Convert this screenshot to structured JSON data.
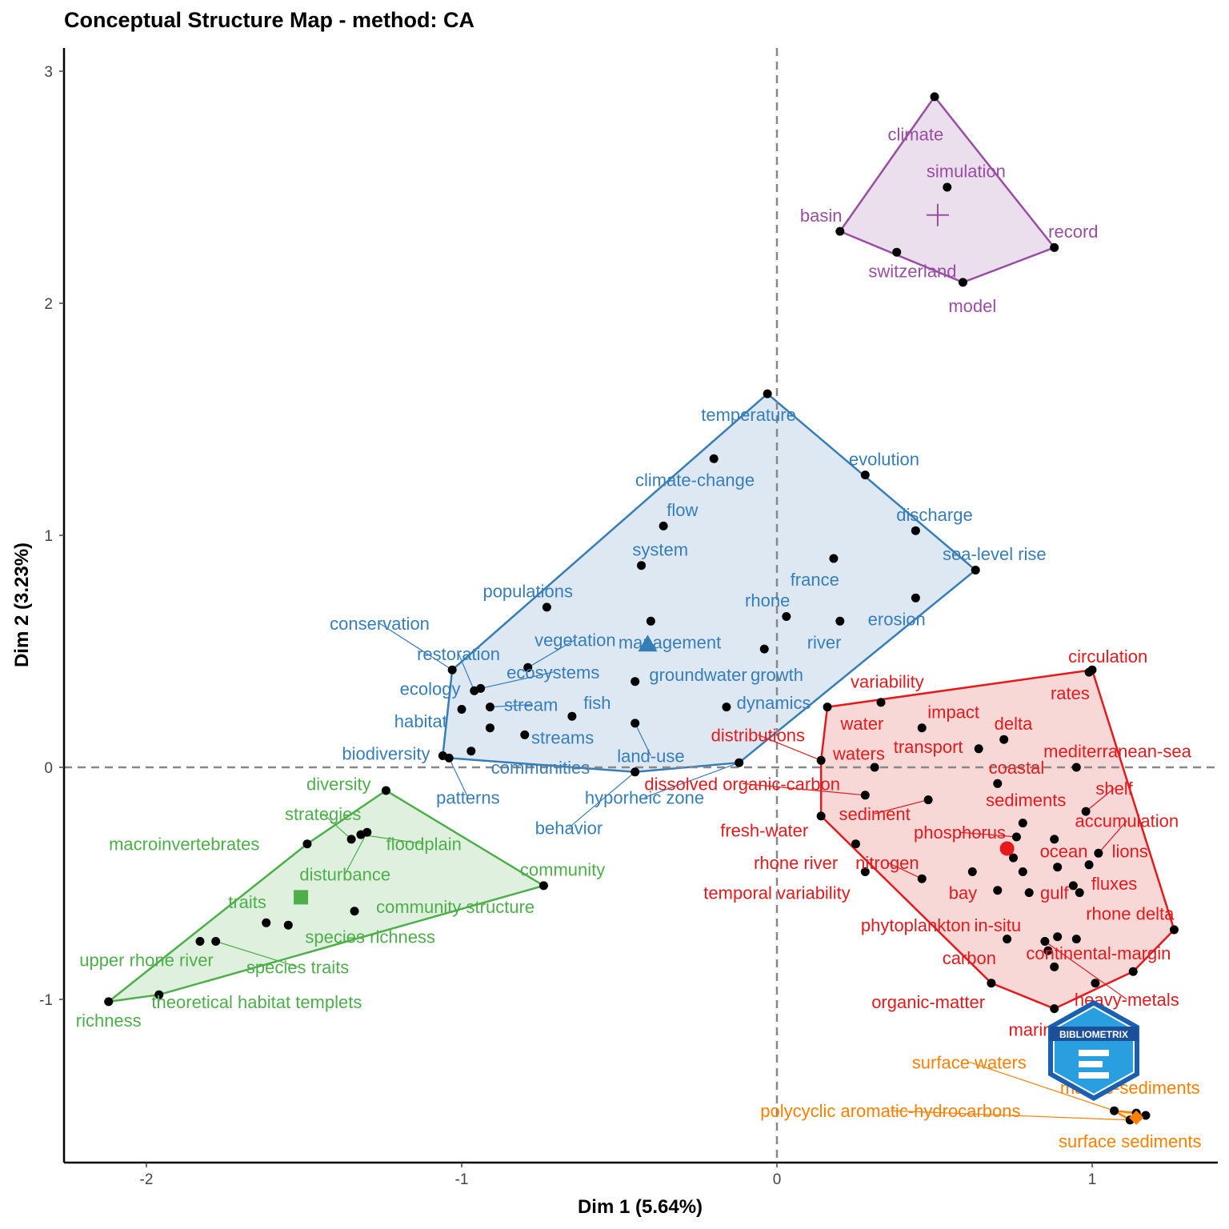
{
  "chart_data": {
    "type": "scatter",
    "title": "Conceptual Structure Map - method: CA",
    "xlabel": "Dim 1 (5.64%)",
    "ylabel": "Dim 2 (3.23%)",
    "xlim": [
      -2.3,
      1.4
    ],
    "ylim": [
      -1.7,
      3.1
    ],
    "xticks": [
      -2,
      -1,
      0,
      1
    ],
    "yticks": [
      -1,
      0,
      1,
      2,
      3
    ],
    "grid": false,
    "reference_lines": {
      "x": 0,
      "y": 0
    },
    "clusters": [
      {
        "id": "purple",
        "color": "#984ea3",
        "fill": "#e7d8ea",
        "centroid_marker": "cross",
        "centroid": [
          0.51,
          2.38
        ],
        "hull": [
          [
            0.5,
            2.89
          ],
          [
            0.2,
            2.31
          ],
          [
            0.59,
            2.09
          ],
          [
            0.88,
            2.24
          ]
        ],
        "points": [
          {
            "x": 0.5,
            "y": 2.89,
            "label": "climate",
            "lx": 0.44,
            "ly": 2.73
          },
          {
            "x": 0.54,
            "y": 2.5,
            "label": "simulation",
            "lx": 0.6,
            "ly": 2.57
          },
          {
            "x": 0.2,
            "y": 2.31,
            "label": "basin",
            "lx": 0.14,
            "ly": 2.38
          },
          {
            "x": 0.88,
            "y": 2.24,
            "label": "record",
            "lx": 0.94,
            "ly": 2.31
          },
          {
            "x": 0.38,
            "y": 2.22,
            "label": "switzerland",
            "lx": 0.43,
            "ly": 2.14
          },
          {
            "x": 0.59,
            "y": 2.09,
            "label": "model",
            "lx": 0.62,
            "ly": 1.99
          }
        ]
      },
      {
        "id": "blue",
        "color": "#377eb8",
        "fill": "#d7e4f1",
        "centroid_marker": "triangle",
        "centroid": [
          -0.41,
          0.53
        ],
        "hull": [
          [
            -0.03,
            1.61
          ],
          [
            -1.03,
            0.42
          ],
          [
            -1.06,
            0.05
          ],
          [
            -1.04,
            0.04
          ],
          [
            -0.45,
            -0.02
          ],
          [
            -0.12,
            0.02
          ],
          [
            0.63,
            0.85
          ]
        ],
        "points": [
          {
            "x": -0.03,
            "y": 1.61,
            "label": "temperature",
            "lx": -0.09,
            "ly": 1.52
          },
          {
            "x": -0.2,
            "y": 1.33,
            "label": "climate-change",
            "lx": -0.26,
            "ly": 1.24
          },
          {
            "x": 0.28,
            "y": 1.26,
            "label": "evolution",
            "lx": 0.34,
            "ly": 1.33
          },
          {
            "x": -0.36,
            "y": 1.04,
            "label": "flow",
            "lx": -0.3,
            "ly": 1.11
          },
          {
            "x": 0.44,
            "y": 1.02,
            "label": "discharge",
            "lx": 0.5,
            "ly": 1.09
          },
          {
            "x": -0.43,
            "y": 0.87,
            "label": "system",
            "lx": -0.37,
            "ly": 0.94
          },
          {
            "x": 0.18,
            "y": 0.9,
            "label": "france",
            "lx": 0.12,
            "ly": 0.81
          },
          {
            "x": 0.63,
            "y": 0.85,
            "label": "sea-level rise",
            "lx": 0.69,
            "ly": 0.92
          },
          {
            "x": -0.73,
            "y": 0.69,
            "label": "populations",
            "lx": -0.79,
            "ly": 0.76
          },
          {
            "x": 0.44,
            "y": 0.73,
            "label": "erosion",
            "lx": 0.38,
            "ly": 0.64
          },
          {
            "x": 0.03,
            "y": 0.65,
            "label": "rhone",
            "lx": -0.03,
            "ly": 0.72
          },
          {
            "x": 0.2,
            "y": 0.63,
            "label": "river",
            "lx": 0.15,
            "ly": 0.54
          },
          {
            "x": -0.4,
            "y": 0.63,
            "label": "management",
            "lx": -0.34,
            "ly": 0.54
          },
          {
            "x": -1.03,
            "y": 0.42,
            "label": "conservation",
            "lx": -1.26,
            "ly": 0.62,
            "lead": true
          },
          {
            "x": -0.79,
            "y": 0.43,
            "label": "vegetation",
            "lx": -0.64,
            "ly": 0.55,
            "lead": true
          },
          {
            "x": -0.04,
            "y": 0.51,
            "label": "growth",
            "lx": 0.0,
            "ly": 0.4
          },
          {
            "x": -0.45,
            "y": 0.37,
            "label": "groundwater",
            "lx": -0.25,
            "ly": 0.4
          },
          {
            "x": -0.96,
            "y": 0.33,
            "label": "restoration",
            "lx": -1.01,
            "ly": 0.49,
            "lead": true
          },
          {
            "x": -0.94,
            "y": 0.34,
            "label": "ecosystems",
            "lx": -0.71,
            "ly": 0.41,
            "lead": true
          },
          {
            "x": -1.0,
            "y": 0.25,
            "label": "ecology",
            "lx": -1.1,
            "ly": 0.34
          },
          {
            "x": -0.91,
            "y": 0.26,
            "label": "stream",
            "lx": -0.78,
            "ly": 0.27,
            "lead": true
          },
          {
            "x": -0.65,
            "y": 0.22,
            "label": "fish",
            "lx": -0.57,
            "ly": 0.28
          },
          {
            "x": -0.16,
            "y": 0.26,
            "label": "dynamics",
            "lx": -0.01,
            "ly": 0.28
          },
          {
            "x": -0.91,
            "y": 0.17,
            "label": "habitat",
            "lx": -1.13,
            "ly": 0.2
          },
          {
            "x": -0.8,
            "y": 0.14,
            "label": "streams",
            "lx": -0.68,
            "ly": 0.13
          },
          {
            "x": -0.45,
            "y": 0.19,
            "label": "land-use",
            "lx": -0.4,
            "ly": 0.05,
            "lead": true
          },
          {
            "x": -1.06,
            "y": 0.05,
            "label": "biodiversity",
            "lx": -1.24,
            "ly": 0.06
          },
          {
            "x": -1.04,
            "y": 0.04,
            "label": "patterns",
            "lx": -0.98,
            "ly": -0.13,
            "lead": true
          },
          {
            "x": -0.97,
            "y": 0.07,
            "label": "communities",
            "lx": -0.75,
            "ly": 0.0
          },
          {
            "x": -0.45,
            "y": -0.02,
            "label": "behavior",
            "lx": -0.66,
            "ly": -0.26,
            "lead": true
          },
          {
            "x": -0.12,
            "y": 0.02,
            "label": "hyporheic zone",
            "lx": -0.42,
            "ly": -0.13,
            "lead": true
          }
        ]
      },
      {
        "id": "green",
        "color": "#4daf4a",
        "fill": "#dbedd8",
        "centroid_marker": "square",
        "centroid": [
          -1.51,
          -0.56
        ],
        "hull": [
          [
            -1.24,
            -0.1
          ],
          [
            -1.49,
            -0.33
          ],
          [
            -2.12,
            -1.01
          ],
          [
            -1.96,
            -0.98
          ],
          [
            -0.74,
            -0.51
          ]
        ],
        "points": [
          {
            "x": -1.24,
            "y": -0.1,
            "label": "diversity",
            "lx": -1.39,
            "ly": -0.07
          },
          {
            "x": -1.49,
            "y": -0.33,
            "label": "macroinvertebrates",
            "lx": -1.88,
            "ly": -0.33
          },
          {
            "x": -1.35,
            "y": -0.31,
            "label": "strategies",
            "lx": -1.44,
            "ly": -0.2,
            "lead": true
          },
          {
            "x": -1.32,
            "y": -0.29,
            "label": "floodplain",
            "lx": -1.12,
            "ly": -0.33,
            "lead": true
          },
          {
            "x": -1.3,
            "y": -0.28,
            "label": "disturbance",
            "lx": -1.37,
            "ly": -0.46,
            "lead": true
          },
          {
            "x": -0.74,
            "y": -0.51,
            "label": "community",
            "lx": -0.68,
            "ly": -0.44
          },
          {
            "x": -1.62,
            "y": -0.67,
            "label": "traits",
            "lx": -1.68,
            "ly": -0.58
          },
          {
            "x": -1.55,
            "y": -0.68,
            "label": "species richness",
            "lx": -1.29,
            "ly": -0.73
          },
          {
            "x": -1.34,
            "y": -0.62,
            "label": "community structure",
            "lx": -1.02,
            "ly": -0.6
          },
          {
            "x": -1.83,
            "y": -0.75,
            "label": "upper rhone river",
            "lx": -2.0,
            "ly": -0.83
          },
          {
            "x": -1.78,
            "y": -0.75,
            "label": "species traits",
            "lx": -1.52,
            "ly": -0.86,
            "lead": true
          },
          {
            "x": -2.12,
            "y": -1.01,
            "label": "richness",
            "lx": -2.12,
            "ly": -1.09
          },
          {
            "x": -1.96,
            "y": -0.98,
            "label": "theoretical habitat templets",
            "lx": -1.65,
            "ly": -1.01
          }
        ]
      },
      {
        "id": "red",
        "color": "#e41a1c",
        "fill": "#f7d0d0",
        "centroid_marker": "circle",
        "centroid": [
          0.73,
          -0.35
        ],
        "hull": [
          [
            1.0,
            0.42
          ],
          [
            0.16,
            0.26
          ],
          [
            0.14,
            0.03
          ],
          [
            0.14,
            -0.21
          ],
          [
            0.68,
            -0.93
          ],
          [
            0.88,
            -1.04
          ],
          [
            1.13,
            -0.88
          ],
          [
            1.26,
            -0.7
          ]
        ],
        "points": [
          {
            "x": 1.0,
            "y": 0.42,
            "label": "circulation",
            "lx": 1.05,
            "ly": 0.48
          },
          {
            "x": 0.33,
            "y": 0.28,
            "label": "variability",
            "lx": 0.35,
            "ly": 0.37
          },
          {
            "x": 0.99,
            "y": 0.41,
            "label": "rates",
            "lx": 0.93,
            "ly": 0.32
          },
          {
            "x": 0.16,
            "y": 0.26,
            "label": "water",
            "lx": 0.27,
            "ly": 0.19
          },
          {
            "x": 0.46,
            "y": 0.17,
            "label": "impact",
            "lx": 0.56,
            "ly": 0.24
          },
          {
            "x": 0.72,
            "y": 0.12,
            "label": "delta",
            "lx": 0.75,
            "ly": 0.19
          },
          {
            "x": 0.14,
            "y": 0.03,
            "label": "distributions",
            "lx": -0.06,
            "ly": 0.14,
            "lead": true
          },
          {
            "x": 0.64,
            "y": 0.08,
            "label": "transport",
            "lx": 0.48,
            "ly": 0.09
          },
          {
            "x": 0.31,
            "y": 0.0,
            "label": "waters",
            "lx": 0.26,
            "ly": 0.06
          },
          {
            "x": 0.95,
            "y": 0.0,
            "label": "mediterranean-sea",
            "lx": 1.08,
            "ly": 0.07
          },
          {
            "x": 0.7,
            "y": -0.07,
            "label": "coastal",
            "lx": 0.76,
            "ly": 0.0
          },
          {
            "x": 0.28,
            "y": -0.12,
            "label": "dissolved organic-carbon",
            "lx": -0.11,
            "ly": -0.07,
            "lead": true
          },
          {
            "x": 0.48,
            "y": -0.14,
            "label": "sediment",
            "lx": 0.31,
            "ly": -0.2,
            "lead": true
          },
          {
            "x": 0.98,
            "y": -0.19,
            "label": "shelf",
            "lx": 1.07,
            "ly": -0.09,
            "lead": true
          },
          {
            "x": 0.78,
            "y": -0.24,
            "label": "sediments",
            "lx": 0.79,
            "ly": -0.14
          },
          {
            "x": 0.14,
            "y": -0.21,
            "label": "fresh-water",
            "lx": -0.04,
            "ly": -0.27
          },
          {
            "x": 0.76,
            "y": -0.3,
            "label": "phosphorus",
            "lx": 0.58,
            "ly": -0.28,
            "lead": true
          },
          {
            "x": 1.02,
            "y": -0.37,
            "label": "accumulation",
            "lx": 1.11,
            "ly": -0.23,
            "lead": true
          },
          {
            "x": 0.88,
            "y": -0.31,
            "label": "ocean",
            "lx": 0.91,
            "ly": -0.36
          },
          {
            "x": 0.99,
            "y": -0.42,
            "label": "lions",
            "lx": 1.12,
            "ly": -0.36
          },
          {
            "x": 0.25,
            "y": -0.33,
            "label": "rhone river",
            "lx": 0.06,
            "ly": -0.41
          },
          {
            "x": 0.46,
            "y": -0.48,
            "label": "nitrogen",
            "lx": 0.35,
            "ly": -0.41,
            "lead": true
          },
          {
            "x": 0.78,
            "y": -0.45,
            "label": "bay",
            "lx": 0.59,
            "ly": -0.54
          },
          {
            "x": 0.89,
            "y": -0.43,
            "label": "gulf",
            "lx": 0.88,
            "ly": -0.54
          },
          {
            "x": 0.28,
            "y": -0.45,
            "label": "temporal variability",
            "lx": 0.0,
            "ly": -0.54
          },
          {
            "x": 0.62,
            "y": -0.45,
            "label": "in-situ",
            "lx": 0.7,
            "ly": -0.68
          },
          {
            "x": 0.94,
            "y": -0.51,
            "label": "fluxes",
            "lx": 1.07,
            "ly": -0.5
          },
          {
            "x": 0.7,
            "y": -0.53,
            "label": "continental-margin",
            "lx": 1.02,
            "ly": -0.8
          },
          {
            "x": 0.96,
            "y": -0.54,
            "label": "rhone delta",
            "lx": 1.12,
            "ly": -0.63
          },
          {
            "x": 0.8,
            "y": -0.54,
            "label": "phytoplankton",
            "lx": 0.44,
            "ly": -0.68
          },
          {
            "x": 0.73,
            "y": -0.74,
            "label": "carbon",
            "lx": 0.61,
            "ly": -0.82
          },
          {
            "x": 0.85,
            "y": -0.75,
            "label": "heavy-metals",
            "lx": 1.11,
            "ly": -1.0,
            "lead": true
          },
          {
            "x": 0.89,
            "y": -0.73,
            "label": "marine",
            "lx": 0.82,
            "ly": -1.13
          },
          {
            "x": 0.95,
            "y": -0.74,
            "label": "organic-matter",
            "lx": 0.48,
            "ly": -1.01
          },
          {
            "x": 1.26,
            "y": -0.7,
            "label": "",
            "lx": 0,
            "ly": 0
          },
          {
            "x": 0.86,
            "y": -0.79,
            "label": "",
            "lx": 0,
            "ly": 0
          },
          {
            "x": 0.88,
            "y": -0.86,
            "label": "",
            "lx": 0,
            "ly": 0
          },
          {
            "x": 1.13,
            "y": -0.88,
            "label": "",
            "lx": 0,
            "ly": 0
          },
          {
            "x": 1.01,
            "y": -0.93,
            "label": "",
            "lx": 0,
            "ly": 0
          },
          {
            "x": 0.68,
            "y": -0.93,
            "label": "",
            "lx": 0,
            "ly": 0
          },
          {
            "x": 0.88,
            "y": -1.04,
            "label": "",
            "lx": 0,
            "ly": 0
          },
          {
            "x": 0.75,
            "y": -0.39,
            "label": "",
            "lx": 0,
            "ly": 0
          }
        ]
      },
      {
        "id": "orange",
        "color": "#ff7f00",
        "fill": "#ffe0c0",
        "centroid_marker": "diamond",
        "centroid": [
          1.14,
          -1.51
        ],
        "hull": [
          [
            1.07,
            -1.48
          ],
          [
            1.12,
            -1.52
          ],
          [
            1.17,
            -1.5
          ],
          [
            1.14,
            -1.49
          ]
        ],
        "points": [
          {
            "x": 1.07,
            "y": -1.48,
            "label": "surface waters",
            "lx": 0.61,
            "ly": -1.27,
            "lead": true
          },
          {
            "x": 1.14,
            "y": -1.49,
            "label": "marine-sediments",
            "lx": 1.12,
            "ly": -1.38
          },
          {
            "x": 1.12,
            "y": -1.52,
            "label": "polycyclic aromatic-hydrocarbons",
            "lx": 0.36,
            "ly": -1.48,
            "lead": true
          },
          {
            "x": 1.17,
            "y": -1.5,
            "label": "surface sediments",
            "lx": 1.12,
            "ly": -1.61
          }
        ]
      }
    ]
  },
  "logo": {
    "text": "BIBLIOMETRIX",
    "icon": "bibliometrix-hexagon-logo"
  }
}
